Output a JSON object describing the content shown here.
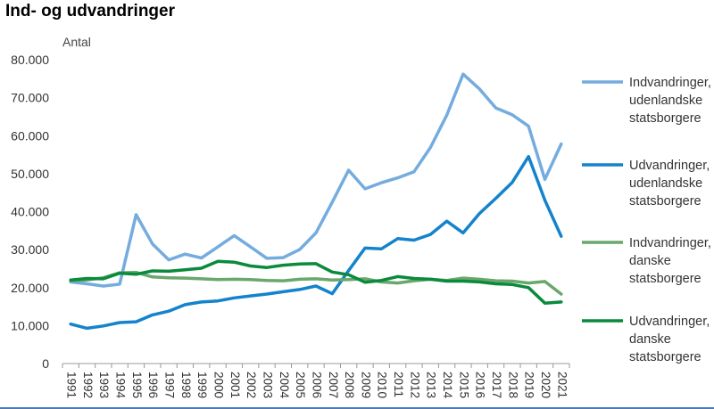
{
  "chart_data": {
    "type": "line",
    "title": "Ind- og udvandringer",
    "ylabel": "Antal",
    "xlabel": "",
    "ylim": [
      0,
      80000
    ],
    "yticks": [
      0,
      10000,
      20000,
      30000,
      40000,
      50000,
      60000,
      70000,
      80000
    ],
    "ytick_labels": [
      "0",
      "10.000",
      "20.000",
      "30.000",
      "40.000",
      "50.000",
      "60.000",
      "70.000",
      "80.000"
    ],
    "x": [
      "1991",
      "1992",
      "1993",
      "1994",
      "1995",
      "1996",
      "1997",
      "1998",
      "1999",
      "2000",
      "2001",
      "2002",
      "2003",
      "2004",
      "2005",
      "2006",
      "2007",
      "2008",
      "2009",
      "2010",
      "2011",
      "2012",
      "2013",
      "2014",
      "2015",
      "2016",
      "2017",
      "2018",
      "2019",
      "2020",
      "2021"
    ],
    "grid": false,
    "legend_position": "right",
    "series": [
      {
        "name": "Indvandringer, udenlandske statsborgere",
        "legend_lines": [
          "Indvandringer,",
          "udenlandske",
          "statsborgere"
        ],
        "color": "#74acdf",
        "values": [
          21500,
          21000,
          20400,
          20900,
          39200,
          31500,
          27300,
          28800,
          27800,
          30700,
          33700,
          30700,
          27700,
          27900,
          30000,
          34400,
          42500,
          50900,
          46000,
          47600,
          48900,
          50500,
          56900,
          65400,
          76200,
          72300,
          67300,
          65500,
          62500,
          48500,
          57800
        ]
      },
      {
        "name": "Udvandringer, udenlandske statsborgere",
        "legend_lines": [
          "Udvandringer,",
          "udenlandske",
          "statsborgere"
        ],
        "color": "#1483cc",
        "values": [
          10400,
          9300,
          9900,
          10800,
          11000,
          12800,
          13800,
          15500,
          16200,
          16500,
          17300,
          17800,
          18300,
          18900,
          19500,
          20400,
          18400,
          24500,
          30400,
          30200,
          32900,
          32500,
          34000,
          37500,
          34400,
          39500,
          43500,
          47700,
          54500,
          43000,
          33500
        ]
      },
      {
        "name": "Indvandringer, danske statsborgere",
        "legend_lines": [
          "Indvandringer,",
          "danske",
          "statsborgere"
        ],
        "color": "#6aa76c",
        "values": [
          21800,
          22000,
          22600,
          23900,
          24000,
          22800,
          22600,
          22500,
          22300,
          22100,
          22200,
          22100,
          21900,
          21800,
          22200,
          22300,
          22000,
          22100,
          22300,
          21500,
          21200,
          21800,
          22200,
          21900,
          22500,
          22200,
          21800,
          21700,
          21200,
          21600,
          18300
        ]
      },
      {
        "name": "Udvandringer, danske statsborgere",
        "legend_lines": [
          "Udvandringer,",
          "danske",
          "statsborgere"
        ],
        "color": "#0a8a3c",
        "values": [
          22000,
          22400,
          22300,
          23800,
          23500,
          24400,
          24300,
          24700,
          25100,
          26900,
          26700,
          25700,
          25300,
          25900,
          26200,
          26300,
          24100,
          23400,
          21400,
          21900,
          22900,
          22400,
          22200,
          21700,
          21700,
          21500,
          21000,
          20800,
          20000,
          15900,
          16200
        ]
      }
    ]
  }
}
